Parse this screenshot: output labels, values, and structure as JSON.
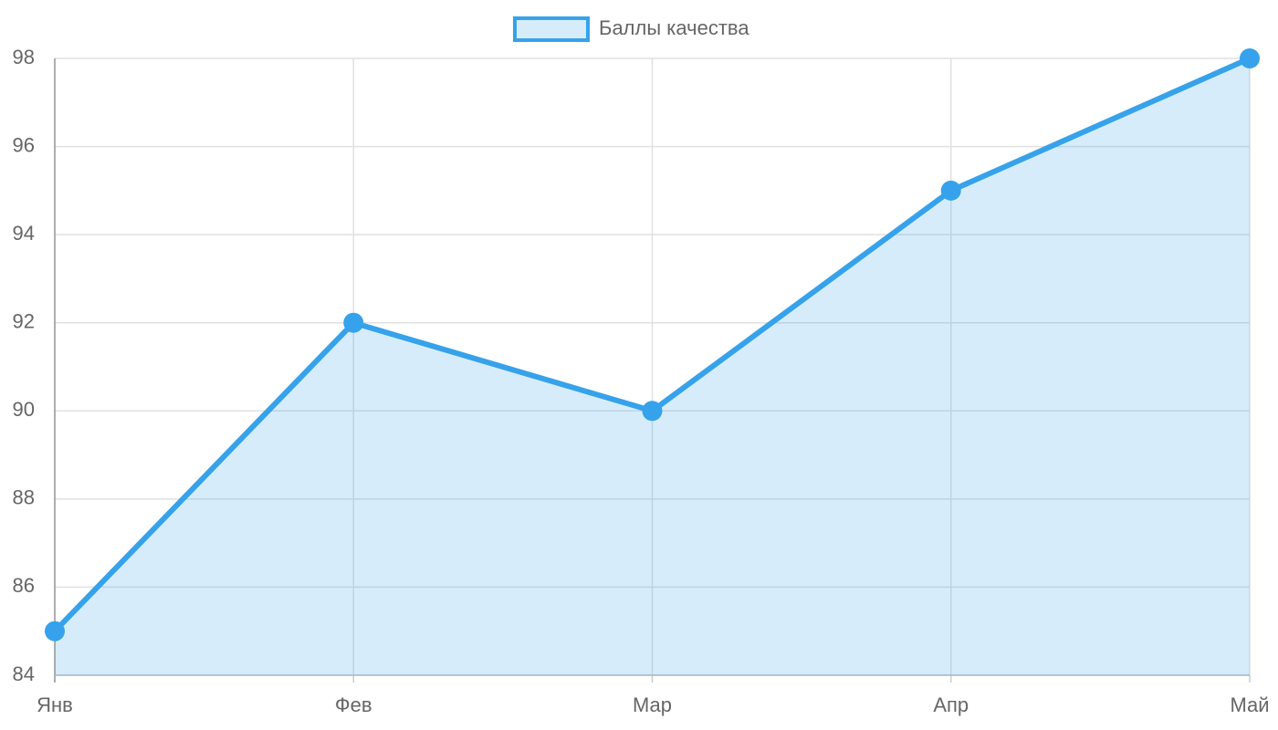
{
  "chart_data": {
    "type": "line",
    "categories": [
      "Янв",
      "Фев",
      "Мар",
      "Апр",
      "Май"
    ],
    "series": [
      {
        "name": "Баллы качества",
        "color": "#36a2eb",
        "values": [
          85,
          92,
          90,
          95,
          98
        ]
      }
    ],
    "fill": true,
    "ylim": [
      84,
      98
    ],
    "yticks": [
      84,
      86,
      88,
      90,
      92,
      94,
      96,
      98
    ],
    "grid": true,
    "legend": "top"
  }
}
